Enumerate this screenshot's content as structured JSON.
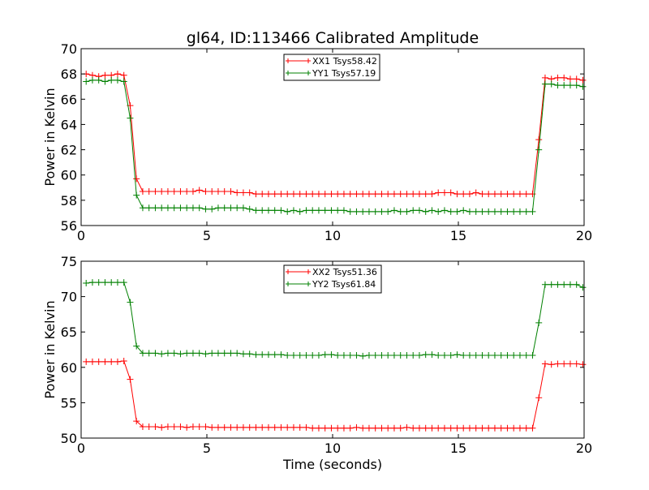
{
  "colors": {
    "red": "#ff0000",
    "green": "#008000"
  },
  "chart_data": [
    {
      "type": "line",
      "title": "gl64, ID:113466 Calibrated Amplitude",
      "xlabel": "",
      "ylabel": "Power in Kelvin",
      "xlim": [
        0,
        20
      ],
      "ylim": [
        56,
        70
      ],
      "xticks": [
        0,
        5,
        10,
        15,
        20
      ],
      "yticks": [
        56,
        58,
        60,
        62,
        64,
        66,
        68,
        70
      ],
      "legend_position": "top-center",
      "grid": false,
      "x": [
        0.2,
        0.45,
        0.7,
        0.95,
        1.2,
        1.45,
        1.7,
        1.95,
        2.2,
        2.45,
        2.7,
        2.95,
        3.2,
        3.45,
        3.7,
        3.95,
        4.2,
        4.45,
        4.7,
        4.95,
        5.2,
        5.45,
        5.7,
        5.95,
        6.2,
        6.45,
        6.7,
        6.95,
        7.2,
        7.45,
        7.7,
        7.95,
        8.2,
        8.45,
        8.7,
        8.95,
        9.2,
        9.45,
        9.7,
        9.95,
        10.2,
        10.45,
        10.7,
        10.95,
        11.2,
        11.45,
        11.7,
        11.95,
        12.2,
        12.45,
        12.7,
        12.95,
        13.2,
        13.45,
        13.7,
        13.95,
        14.2,
        14.45,
        14.7,
        14.95,
        15.2,
        15.45,
        15.7,
        15.95,
        16.2,
        16.45,
        16.7,
        16.95,
        17.2,
        17.45,
        17.7,
        17.95,
        18.2,
        18.45,
        18.7,
        18.95,
        19.2,
        19.45,
        19.7,
        19.95
      ],
      "series": [
        {
          "name": "XX1 Tsys58.42",
          "color": "#ff0000",
          "values": [
            68.0,
            67.9,
            67.8,
            67.9,
            67.9,
            68.0,
            67.9,
            65.5,
            59.7,
            58.7,
            58.7,
            58.7,
            58.7,
            58.7,
            58.7,
            58.7,
            58.7,
            58.7,
            58.8,
            58.7,
            58.7,
            58.7,
            58.7,
            58.7,
            58.6,
            58.6,
            58.6,
            58.5,
            58.5,
            58.5,
            58.5,
            58.5,
            58.5,
            58.5,
            58.5,
            58.5,
            58.5,
            58.5,
            58.5,
            58.5,
            58.5,
            58.5,
            58.5,
            58.5,
            58.5,
            58.5,
            58.5,
            58.5,
            58.5,
            58.5,
            58.5,
            58.5,
            58.5,
            58.5,
            58.5,
            58.5,
            58.6,
            58.6,
            58.6,
            58.5,
            58.5,
            58.5,
            58.6,
            58.5,
            58.5,
            58.5,
            58.5,
            58.5,
            58.5,
            58.5,
            58.5,
            58.5,
            62.8,
            67.7,
            67.6,
            67.7,
            67.7,
            67.6,
            67.6,
            67.5
          ]
        },
        {
          "name": "YY1 Tsys57.19",
          "color": "#008000",
          "values": [
            67.4,
            67.5,
            67.5,
            67.4,
            67.5,
            67.5,
            67.4,
            64.5,
            58.4,
            57.4,
            57.4,
            57.4,
            57.4,
            57.4,
            57.4,
            57.4,
            57.4,
            57.4,
            57.4,
            57.3,
            57.3,
            57.4,
            57.4,
            57.4,
            57.4,
            57.4,
            57.3,
            57.2,
            57.2,
            57.2,
            57.2,
            57.2,
            57.1,
            57.2,
            57.1,
            57.2,
            57.2,
            57.2,
            57.2,
            57.2,
            57.2,
            57.2,
            57.1,
            57.1,
            57.1,
            57.1,
            57.1,
            57.1,
            57.1,
            57.2,
            57.1,
            57.1,
            57.2,
            57.2,
            57.1,
            57.2,
            57.1,
            57.2,
            57.1,
            57.1,
            57.2,
            57.1,
            57.1,
            57.1,
            57.1,
            57.1,
            57.1,
            57.1,
            57.1,
            57.1,
            57.1,
            57.1,
            62.0,
            67.2,
            67.2,
            67.1,
            67.1,
            67.1,
            67.1,
            67.0
          ]
        }
      ]
    },
    {
      "type": "line",
      "title": "",
      "xlabel": "Time (seconds)",
      "ylabel": "Power in Kelvin",
      "xlim": [
        0,
        20
      ],
      "ylim": [
        50,
        75
      ],
      "xticks": [
        0,
        5,
        10,
        15,
        20
      ],
      "yticks": [
        50,
        55,
        60,
        65,
        70,
        75
      ],
      "legend_position": "top-center",
      "grid": false,
      "x": [
        0.2,
        0.45,
        0.7,
        0.95,
        1.2,
        1.45,
        1.7,
        1.95,
        2.2,
        2.45,
        2.7,
        2.95,
        3.2,
        3.45,
        3.7,
        3.95,
        4.2,
        4.45,
        4.7,
        4.95,
        5.2,
        5.45,
        5.7,
        5.95,
        6.2,
        6.45,
        6.7,
        6.95,
        7.2,
        7.45,
        7.7,
        7.95,
        8.2,
        8.45,
        8.7,
        8.95,
        9.2,
        9.45,
        9.7,
        9.95,
        10.2,
        10.45,
        10.7,
        10.95,
        11.2,
        11.45,
        11.7,
        11.95,
        12.2,
        12.45,
        12.7,
        12.95,
        13.2,
        13.45,
        13.7,
        13.95,
        14.2,
        14.45,
        14.7,
        14.95,
        15.2,
        15.45,
        15.7,
        15.95,
        16.2,
        16.45,
        16.7,
        16.95,
        17.2,
        17.45,
        17.7,
        17.95,
        18.2,
        18.45,
        18.7,
        18.95,
        19.2,
        19.45,
        19.7,
        19.95
      ],
      "series": [
        {
          "name": "XX2 Tsys51.36",
          "color": "#ff0000",
          "values": [
            60.8,
            60.8,
            60.8,
            60.8,
            60.8,
            60.8,
            60.9,
            58.3,
            52.4,
            51.6,
            51.6,
            51.6,
            51.5,
            51.6,
            51.6,
            51.6,
            51.5,
            51.6,
            51.6,
            51.6,
            51.5,
            51.5,
            51.5,
            51.5,
            51.5,
            51.5,
            51.5,
            51.5,
            51.5,
            51.5,
            51.5,
            51.5,
            51.5,
            51.5,
            51.5,
            51.5,
            51.4,
            51.4,
            51.4,
            51.4,
            51.4,
            51.4,
            51.4,
            51.5,
            51.4,
            51.4,
            51.4,
            51.4,
            51.4,
            51.4,
            51.4,
            51.5,
            51.4,
            51.4,
            51.4,
            51.4,
            51.4,
            51.4,
            51.4,
            51.4,
            51.4,
            51.4,
            51.4,
            51.4,
            51.4,
            51.4,
            51.4,
            51.4,
            51.4,
            51.4,
            51.4,
            51.4,
            55.7,
            60.5,
            60.4,
            60.5,
            60.5,
            60.5,
            60.5,
            60.4
          ]
        },
        {
          "name": "YY2 Tsys61.84",
          "color": "#008000",
          "values": [
            71.9,
            72.0,
            72.0,
            72.0,
            72.0,
            72.0,
            72.0,
            69.2,
            63.0,
            62.0,
            62.0,
            62.0,
            61.9,
            62.0,
            62.0,
            61.9,
            62.0,
            62.0,
            62.0,
            61.9,
            62.0,
            62.0,
            62.0,
            62.0,
            62.0,
            61.9,
            61.9,
            61.8,
            61.8,
            61.8,
            61.8,
            61.8,
            61.7,
            61.7,
            61.7,
            61.7,
            61.7,
            61.7,
            61.8,
            61.8,
            61.7,
            61.7,
            61.7,
            61.7,
            61.6,
            61.7,
            61.7,
            61.7,
            61.7,
            61.7,
            61.7,
            61.7,
            61.7,
            61.7,
            61.8,
            61.8,
            61.7,
            61.7,
            61.7,
            61.8,
            61.7,
            61.7,
            61.7,
            61.7,
            61.7,
            61.7,
            61.7,
            61.7,
            61.7,
            61.7,
            61.7,
            61.7,
            66.3,
            71.7,
            71.7,
            71.7,
            71.7,
            71.7,
            71.7,
            71.3
          ]
        }
      ]
    }
  ]
}
